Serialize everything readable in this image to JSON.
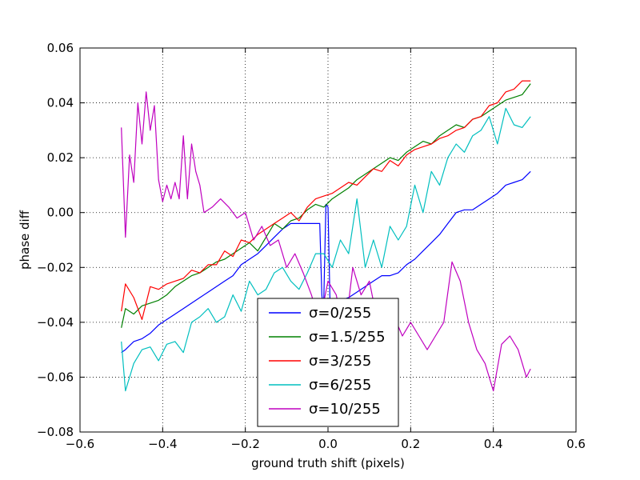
{
  "chart_data": {
    "type": "line",
    "title": "",
    "xlabel": "ground truth shift (pixels)",
    "ylabel": "phase diff",
    "xlim": [
      -0.6,
      0.6
    ],
    "ylim": [
      -0.08,
      0.06
    ],
    "xticks": [
      -0.6,
      -0.4,
      -0.2,
      0.0,
      0.2,
      0.4,
      0.6
    ],
    "xtick_labels": [
      "−0.6",
      "−0.4",
      "−0.2",
      "0.0",
      "0.2",
      "0.4",
      "0.6"
    ],
    "yticks": [
      -0.08,
      -0.06,
      -0.04,
      -0.02,
      0.0,
      0.02,
      0.04,
      0.06
    ],
    "ytick_labels": [
      "−0.08",
      "−0.06",
      "−0.04",
      "−0.02",
      "0.00",
      "0.02",
      "0.04",
      "0.06"
    ],
    "grid": true,
    "legend_position": "lower-center",
    "series": [
      {
        "name": "σ=0/255",
        "color": "#0000ff",
        "x": [
          -0.5,
          -0.49,
          -0.47,
          -0.45,
          -0.43,
          -0.41,
          -0.39,
          -0.37,
          -0.35,
          -0.33,
          -0.31,
          -0.29,
          -0.27,
          -0.25,
          -0.23,
          -0.21,
          -0.19,
          -0.17,
          -0.15,
          -0.13,
          -0.11,
          -0.09,
          -0.07,
          -0.05,
          -0.03,
          -0.02,
          -0.015,
          -0.012,
          -0.01,
          -0.005,
          0.0,
          0.005,
          0.01,
          0.03,
          0.05,
          0.07,
          0.09,
          0.11,
          0.13,
          0.15,
          0.17,
          0.19,
          0.21,
          0.23,
          0.25,
          0.27,
          0.29,
          0.31,
          0.33,
          0.35,
          0.37,
          0.39,
          0.41,
          0.43,
          0.45,
          0.47,
          0.49
        ],
        "y": [
          -0.051,
          -0.05,
          -0.047,
          -0.046,
          -0.044,
          -0.041,
          -0.039,
          -0.037,
          -0.035,
          -0.033,
          -0.031,
          -0.029,
          -0.027,
          -0.025,
          -0.023,
          -0.019,
          -0.017,
          -0.015,
          -0.012,
          -0.009,
          -0.006,
          -0.004,
          -0.004,
          -0.004,
          -0.004,
          -0.004,
          -0.03,
          -0.035,
          -0.031,
          0.003,
          0.002,
          -0.034,
          -0.033,
          -0.032,
          -0.031,
          -0.029,
          -0.027,
          -0.025,
          -0.023,
          -0.023,
          -0.022,
          -0.019,
          -0.017,
          -0.014,
          -0.011,
          -0.008,
          -0.004,
          0.0,
          0.001,
          0.001,
          0.003,
          0.005,
          0.007,
          0.01,
          0.011,
          0.012,
          0.015
        ]
      },
      {
        "name": "σ=1.5/255",
        "color": "#008000",
        "x": [
          -0.5,
          -0.49,
          -0.47,
          -0.45,
          -0.43,
          -0.41,
          -0.39,
          -0.37,
          -0.35,
          -0.33,
          -0.31,
          -0.29,
          -0.27,
          -0.25,
          -0.23,
          -0.21,
          -0.19,
          -0.17,
          -0.15,
          -0.13,
          -0.11,
          -0.09,
          -0.07,
          -0.05,
          -0.03,
          -0.01,
          0.01,
          0.03,
          0.05,
          0.07,
          0.09,
          0.11,
          0.13,
          0.15,
          0.17,
          0.19,
          0.21,
          0.23,
          0.25,
          0.27,
          0.29,
          0.31,
          0.33,
          0.35,
          0.37,
          0.39,
          0.41,
          0.43,
          0.45,
          0.47,
          0.49
        ],
        "y": [
          -0.042,
          -0.035,
          -0.037,
          -0.034,
          -0.033,
          -0.032,
          -0.03,
          -0.027,
          -0.025,
          -0.023,
          -0.022,
          -0.02,
          -0.018,
          -0.017,
          -0.015,
          -0.013,
          -0.011,
          -0.014,
          -0.009,
          -0.004,
          -0.006,
          -0.003,
          -0.002,
          0.001,
          0.003,
          0.002,
          0.005,
          0.007,
          0.009,
          0.012,
          0.014,
          0.016,
          0.018,
          0.02,
          0.019,
          0.022,
          0.024,
          0.026,
          0.025,
          0.028,
          0.03,
          0.032,
          0.031,
          0.034,
          0.035,
          0.037,
          0.039,
          0.041,
          0.042,
          0.043,
          0.047
        ]
      },
      {
        "name": "σ=3/255",
        "color": "#ff0000",
        "x": [
          -0.5,
          -0.49,
          -0.47,
          -0.45,
          -0.43,
          -0.41,
          -0.39,
          -0.37,
          -0.35,
          -0.33,
          -0.31,
          -0.29,
          -0.27,
          -0.25,
          -0.23,
          -0.21,
          -0.19,
          -0.17,
          -0.15,
          -0.13,
          -0.11,
          -0.09,
          -0.07,
          -0.05,
          -0.03,
          -0.01,
          0.01,
          0.03,
          0.05,
          0.07,
          0.09,
          0.11,
          0.13,
          0.15,
          0.17,
          0.19,
          0.21,
          0.23,
          0.25,
          0.27,
          0.29,
          0.31,
          0.33,
          0.35,
          0.37,
          0.39,
          0.41,
          0.43,
          0.45,
          0.47,
          0.49
        ],
        "y": [
          -0.036,
          -0.026,
          -0.031,
          -0.039,
          -0.027,
          -0.028,
          -0.026,
          -0.025,
          -0.024,
          -0.021,
          -0.022,
          -0.019,
          -0.019,
          -0.014,
          -0.016,
          -0.01,
          -0.011,
          -0.008,
          -0.006,
          -0.004,
          -0.002,
          0.0,
          -0.003,
          0.002,
          0.005,
          0.006,
          0.007,
          0.009,
          0.011,
          0.01,
          0.013,
          0.016,
          0.015,
          0.019,
          0.017,
          0.021,
          0.023,
          0.024,
          0.025,
          0.027,
          0.028,
          0.03,
          0.031,
          0.034,
          0.035,
          0.039,
          0.04,
          0.044,
          0.045,
          0.048,
          0.048
        ]
      },
      {
        "name": "σ=6/255",
        "color": "#00bfbf",
        "x": [
          -0.5,
          -0.49,
          -0.47,
          -0.45,
          -0.43,
          -0.41,
          -0.39,
          -0.37,
          -0.35,
          -0.33,
          -0.31,
          -0.29,
          -0.27,
          -0.25,
          -0.23,
          -0.21,
          -0.19,
          -0.17,
          -0.15,
          -0.13,
          -0.11,
          -0.09,
          -0.07,
          -0.05,
          -0.03,
          -0.01,
          0.01,
          0.03,
          0.05,
          0.07,
          0.09,
          0.11,
          0.13,
          0.15,
          0.17,
          0.19,
          0.21,
          0.23,
          0.25,
          0.27,
          0.29,
          0.31,
          0.33,
          0.35,
          0.37,
          0.39,
          0.41,
          0.43,
          0.45,
          0.47,
          0.49
        ],
        "y": [
          -0.047,
          -0.065,
          -0.055,
          -0.05,
          -0.049,
          -0.054,
          -0.048,
          -0.047,
          -0.051,
          -0.04,
          -0.038,
          -0.035,
          -0.04,
          -0.038,
          -0.03,
          -0.036,
          -0.025,
          -0.03,
          -0.028,
          -0.022,
          -0.02,
          -0.025,
          -0.028,
          -0.022,
          -0.015,
          -0.015,
          -0.02,
          -0.01,
          -0.015,
          0.005,
          -0.02,
          -0.01,
          -0.02,
          -0.005,
          -0.01,
          -0.005,
          0.01,
          0.0,
          0.015,
          0.01,
          0.02,
          0.025,
          0.022,
          0.028,
          0.03,
          0.035,
          0.025,
          0.038,
          0.032,
          0.031,
          0.035
        ]
      },
      {
        "name": "σ=10/255",
        "color": "#bf00bf",
        "x": [
          -0.5,
          -0.49,
          -0.48,
          -0.47,
          -0.46,
          -0.45,
          -0.44,
          -0.43,
          -0.42,
          -0.41,
          -0.4,
          -0.39,
          -0.38,
          -0.37,
          -0.36,
          -0.35,
          -0.34,
          -0.33,
          -0.32,
          -0.31,
          -0.3,
          -0.28,
          -0.26,
          -0.24,
          -0.22,
          -0.2,
          -0.18,
          -0.16,
          -0.14,
          -0.12,
          -0.1,
          -0.08,
          -0.06,
          -0.04,
          -0.02,
          0.0,
          0.02,
          0.04,
          0.06,
          0.08,
          0.1,
          0.12,
          0.14,
          0.16,
          0.18,
          0.2,
          0.22,
          0.24,
          0.26,
          0.28,
          0.3,
          0.32,
          0.34,
          0.36,
          0.38,
          0.4,
          0.42,
          0.44,
          0.46,
          0.48,
          0.49
        ],
        "y": [
          0.031,
          -0.009,
          0.021,
          0.011,
          0.04,
          0.025,
          0.044,
          0.03,
          0.039,
          0.012,
          0.004,
          0.01,
          0.005,
          0.011,
          0.005,
          0.028,
          0.005,
          0.025,
          0.015,
          0.01,
          0.0,
          0.002,
          0.005,
          0.002,
          -0.002,
          0.0,
          -0.01,
          -0.005,
          -0.012,
          -0.01,
          -0.02,
          -0.015,
          -0.022,
          -0.03,
          -0.04,
          -0.025,
          -0.03,
          -0.045,
          -0.02,
          -0.03,
          -0.025,
          -0.04,
          -0.035,
          -0.038,
          -0.045,
          -0.04,
          -0.045,
          -0.05,
          -0.045,
          -0.04,
          -0.018,
          -0.025,
          -0.04,
          -0.05,
          -0.055,
          -0.065,
          -0.048,
          -0.045,
          -0.05,
          -0.06,
          -0.057
        ]
      }
    ]
  }
}
